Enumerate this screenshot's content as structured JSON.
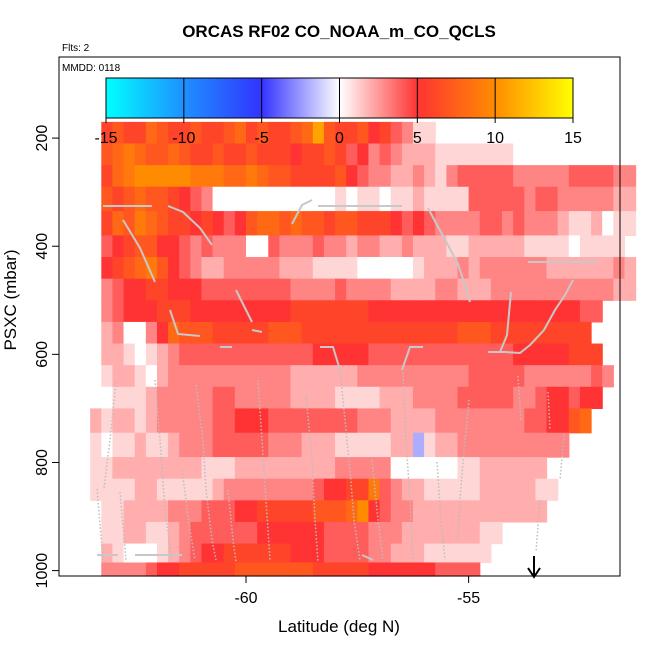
{
  "chart_data": {
    "type": "heatmap",
    "title": "ORCAS RF02 CO_NOAA_m_CO_QCLS",
    "subtitle": "Flts: 2",
    "annotation": "MMDD: 0118",
    "xlabel": "Latitude (deg N)",
    "ylabel": "PSXC (mbar)",
    "xlim": [
      -64.2,
      -51.6
    ],
    "ylim": [
      1010,
      50
    ],
    "x_ticks": [
      -60,
      -55
    ],
    "x_tick_labels": [
      "-60",
      "-55"
    ],
    "y_ticks": [
      200,
      400,
      600,
      800,
      1000
    ],
    "y_tick_labels": [
      "200",
      "400",
      "600",
      "800",
      "1000"
    ],
    "colorbar": {
      "range": [
        -15,
        15
      ],
      "ticks": [
        -15,
        -10,
        -5,
        0,
        5,
        10,
        15
      ],
      "tick_labels": [
        "-15",
        "-10",
        "-5",
        "0",
        "5",
        "10",
        "15"
      ],
      "colors": [
        "#00ffff",
        "#1e90ff",
        "#3333ff",
        "#ffffff",
        "#ff3333",
        "#ff8c00",
        "#ffff00"
      ]
    },
    "x_bin_start": -63.25,
    "x_bin_width": 0.25,
    "y_bin_edges": [
      170,
      210,
      250,
      290,
      335,
      380,
      420,
      460,
      500,
      540,
      580,
      620,
      660,
      700,
      745,
      790,
      830,
      870,
      910,
      950,
      985,
      1010
    ],
    "rows": [
      {
        "start": 0,
        "values": [
          6,
          7,
          6,
          6,
          8,
          7,
          6,
          6,
          7,
          6,
          6,
          7,
          8,
          6,
          7,
          6,
          6,
          7,
          8,
          11,
          7,
          6,
          6,
          7,
          5,
          6,
          4,
          3,
          1,
          1
        ]
      },
      {
        "start": 0,
        "values": [
          7,
          8,
          9,
          8,
          7,
          7,
          8,
          7,
          6,
          6,
          7,
          6,
          6,
          7,
          6,
          6,
          6,
          5,
          6,
          6,
          7,
          6,
          4,
          5,
          3,
          4,
          3,
          2,
          2,
          2,
          1,
          1,
          1,
          1,
          1,
          1,
          1,
          0,
          0,
          0
        ]
      },
      {
        "start": 0,
        "values": [
          6,
          8,
          9,
          10,
          10,
          10,
          10,
          10,
          9,
          9,
          9,
          8,
          8,
          9,
          8,
          7,
          7,
          6,
          6,
          6,
          6,
          7,
          5,
          4,
          3,
          3,
          2,
          2,
          3,
          2,
          1,
          3,
          4,
          4,
          4,
          4,
          4,
          3,
          3,
          3,
          3,
          3,
          4,
          4,
          4,
          4,
          3,
          3
        ]
      },
      {
        "start": 0,
        "values": [
          7,
          6,
          7,
          8,
          7,
          7,
          6,
          5,
          4,
          3,
          0,
          0,
          0,
          0,
          0,
          0,
          0,
          0,
          0,
          0,
          0,
          1,
          0,
          1,
          1,
          0,
          1,
          1,
          2,
          1,
          1,
          1,
          1,
          4,
          4,
          4,
          4,
          4,
          3,
          4,
          4,
          3,
          3,
          3,
          3,
          3,
          2,
          2
        ]
      },
      {
        "start": 0,
        "values": [
          6,
          8,
          7,
          9,
          8,
          7,
          6,
          6,
          5,
          6,
          5,
          4,
          5,
          7,
          8,
          8,
          7,
          8,
          7,
          7,
          6,
          7,
          7,
          6,
          6,
          6,
          5,
          4,
          5,
          4,
          3,
          3,
          3,
          3,
          4,
          4,
          3,
          4,
          3,
          3,
          3,
          2,
          1,
          1,
          2,
          0,
          1,
          1
        ]
      },
      {
        "start": 0,
        "values": [
          4,
          5,
          6,
          7,
          7,
          5,
          5,
          4,
          3,
          4,
          3,
          3,
          3,
          0,
          0,
          4,
          3,
          3,
          3,
          4,
          3,
          3,
          2,
          3,
          3,
          2,
          2,
          3,
          2,
          2,
          2,
          1,
          1,
          2,
          2,
          2,
          2,
          2,
          1,
          1,
          1,
          1,
          0,
          1,
          1,
          1,
          1
        ]
      },
      {
        "start": 0,
        "values": [
          5,
          6,
          7,
          8,
          9,
          7,
          5,
          4,
          3,
          2,
          2,
          3,
          3,
          3,
          3,
          3,
          2,
          2,
          2,
          1,
          1,
          1,
          1,
          0,
          0,
          0,
          0,
          0,
          1,
          2,
          2,
          2,
          3,
          2,
          3,
          3,
          3,
          3,
          3,
          3,
          2,
          2,
          2,
          2,
          2,
          2,
          3,
          2
        ]
      },
      {
        "start": 0,
        "values": [
          3,
          4,
          5,
          5,
          6,
          6,
          5,
          5,
          5,
          4,
          4,
          4,
          4,
          4,
          4,
          4,
          4,
          3,
          3,
          3,
          3,
          4,
          3,
          3,
          3,
          3,
          2,
          2,
          2,
          2,
          3,
          3,
          2,
          2,
          2,
          3,
          3,
          3,
          3,
          3,
          3,
          3,
          3,
          3,
          3,
          3,
          2,
          2
        ]
      },
      {
        "start": 0,
        "values": [
          3,
          4,
          5,
          5,
          5,
          6,
          6,
          6,
          5,
          5,
          5,
          5,
          5,
          5,
          5,
          5,
          5,
          6,
          6,
          6,
          6,
          6,
          6,
          6,
          5,
          5,
          5,
          5,
          5,
          5,
          5,
          5,
          5,
          5,
          5,
          5,
          5,
          5,
          5,
          5,
          5,
          5,
          5,
          4,
          4
        ]
      },
      {
        "start": 0,
        "values": [
          2,
          3,
          0,
          0,
          3,
          5,
          8,
          7,
          7,
          7,
          6,
          6,
          6,
          6,
          6,
          7,
          7,
          7,
          6,
          6,
          6,
          6,
          6,
          6,
          6,
          6,
          6,
          6,
          6,
          6,
          6,
          6,
          7,
          7,
          7,
          6,
          6,
          6,
          6,
          6,
          6,
          6,
          6,
          6
        ]
      },
      {
        "start": 0,
        "values": [
          2,
          2,
          1,
          0,
          1,
          2,
          3,
          4,
          4,
          4,
          4,
          4,
          4,
          4,
          4,
          4,
          4,
          4,
          4,
          5,
          5,
          5,
          5,
          5,
          4,
          4,
          4,
          4,
          4,
          4,
          4,
          4,
          4,
          4,
          4,
          4,
          4,
          5,
          5,
          5,
          5,
          5,
          6,
          6,
          6
        ]
      },
      {
        "start": 0,
        "values": [
          1,
          2,
          2,
          1,
          0,
          2,
          3,
          3,
          3,
          3,
          3,
          3,
          3,
          3,
          3,
          3,
          3,
          2,
          2,
          2,
          2,
          2,
          2,
          3,
          3,
          3,
          3,
          3,
          3,
          3,
          3,
          3,
          3,
          4,
          4,
          4,
          4,
          4,
          3,
          3,
          3,
          3,
          3,
          3,
          4,
          3
        ]
      },
      {
        "start": 0,
        "values": [
          0,
          1,
          1,
          1,
          2,
          3,
          3,
          3,
          3,
          3,
          4,
          4,
          3,
          3,
          3,
          3,
          3,
          2,
          2,
          2,
          2,
          1,
          1,
          1,
          1,
          2,
          2,
          2,
          3,
          3,
          3,
          3,
          4,
          4,
          4,
          4,
          4,
          3,
          3,
          4,
          5,
          5,
          4,
          5,
          5
        ]
      },
      {
        "start": -1,
        "values": [
          2,
          1,
          2,
          2,
          1,
          2,
          3,
          3,
          3,
          3,
          3,
          4,
          4,
          5,
          5,
          5,
          4,
          4,
          4,
          4,
          4,
          4,
          4,
          4,
          3,
          3,
          3,
          2,
          2,
          2,
          2,
          3,
          3,
          3,
          3,
          3,
          3,
          3,
          3,
          4,
          4,
          5,
          5,
          7,
          8
        ]
      },
      {
        "start": -1,
        "values": [
          1,
          0,
          1,
          1,
          2,
          1,
          1,
          2,
          3,
          3,
          3,
          4,
          4,
          4,
          4,
          4,
          3,
          3,
          3,
          2,
          2,
          2,
          1,
          1,
          1,
          1,
          1,
          2,
          2,
          -2,
          1,
          2,
          2,
          3,
          3,
          3,
          3,
          3,
          3,
          3,
          3,
          3,
          3
        ]
      },
      {
        "start": -1,
        "values": [
          1,
          1,
          2,
          2,
          2,
          2,
          2,
          2,
          2,
          2,
          1,
          1,
          1,
          2,
          2,
          2,
          2,
          2,
          2,
          2,
          2,
          2,
          3,
          3,
          3,
          3,
          3,
          0,
          0,
          0,
          0,
          0,
          0,
          1,
          1,
          2,
          2,
          2,
          2,
          2,
          2
        ]
      },
      {
        "start": -1,
        "values": [
          1,
          1,
          1,
          1,
          2,
          2,
          1,
          1,
          1,
          1,
          1,
          2,
          3,
          3,
          3,
          3,
          3,
          3,
          3,
          3,
          4,
          5,
          5,
          6,
          6,
          9,
          4,
          3,
          2,
          2,
          1,
          1,
          1,
          1,
          1,
          2,
          2,
          2,
          2,
          2,
          1,
          1
        ]
      },
      {
        "start": 0,
        "values": [
          1,
          1,
          2,
          2,
          2,
          2,
          3,
          3,
          3,
          4,
          4,
          4,
          5,
          5,
          6,
          6,
          6,
          6,
          6,
          7,
          7,
          7,
          8,
          10,
          5,
          4,
          3,
          3,
          2,
          2,
          2,
          2,
          2,
          2,
          2,
          2,
          2,
          2,
          2,
          2
        ]
      },
      {
        "start": 0,
        "values": [
          1,
          1,
          2,
          2,
          1,
          1,
          2,
          3,
          4,
          4,
          4,
          4,
          4,
          4,
          5,
          5,
          5,
          5,
          5,
          5,
          4,
          4,
          4,
          4,
          3,
          3,
          3,
          2,
          2,
          2,
          2,
          2,
          2,
          2,
          1,
          1
        ]
      },
      {
        "start": 0,
        "values": [
          2,
          1,
          0,
          0,
          0,
          1,
          2,
          3,
          4,
          5,
          5,
          6,
          6,
          6,
          6,
          6,
          6,
          5,
          5,
          5,
          4,
          4,
          4,
          4,
          3,
          3,
          2,
          2,
          2,
          1,
          1,
          1,
          1,
          1,
          1
        ]
      },
      {
        "start": 0,
        "values": [
          3,
          3,
          3,
          3,
          4,
          5,
          5,
          6,
          6,
          6,
          6,
          6,
          7,
          7,
          7,
          7,
          7,
          7,
          7,
          6,
          6,
          6,
          6,
          6,
          5,
          5,
          5,
          5,
          5,
          5,
          4,
          4,
          4,
          4
        ]
      }
    ]
  }
}
